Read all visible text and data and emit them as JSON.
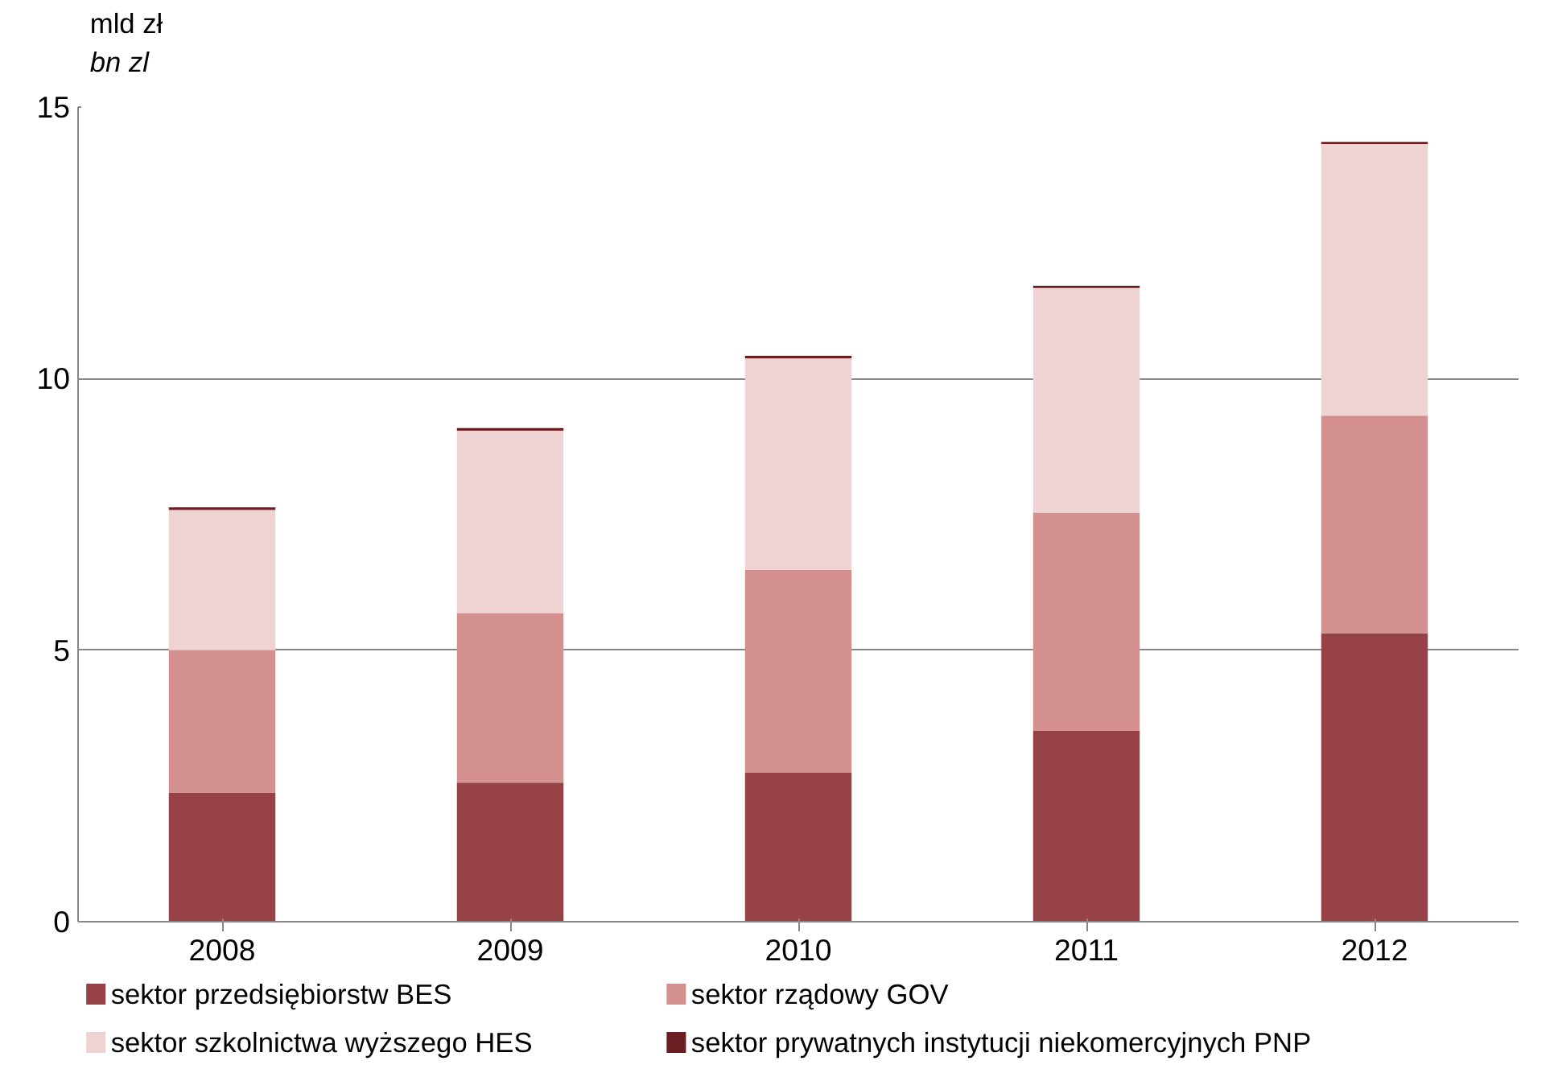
{
  "chart_data": {
    "type": "bar",
    "stacked": true,
    "ylabel": "mld zł\nbn zl",
    "categories": [
      "2008",
      "2009",
      "2010",
      "2011",
      "2012"
    ],
    "series": [
      {
        "name": "sektor przedsiębiorstw BES",
        "color": "#954145",
        "values": [
          2.38,
          2.56,
          2.75,
          3.52,
          5.31
        ]
      },
      {
        "name": "sektor rządowy GOV",
        "color": "#d4908e",
        "values": [
          2.62,
          3.12,
          3.73,
          4.01,
          4.01
        ]
      },
      {
        "name": "sektor szkolnictwa wyższego HES",
        "color": "#efd3d3",
        "values": [
          2.58,
          3.36,
          3.89,
          4.14,
          5.0
        ]
      },
      {
        "name": "sektor prywatnych instytucji niekomercyjnych PNP",
        "color": "#6b1e22",
        "values": [
          0.05,
          0.05,
          0.05,
          0.04,
          0.04
        ]
      }
    ],
    "ylim": [
      0,
      15
    ],
    "yticks": [
      0,
      5,
      10,
      15
    ],
    "grid": "y",
    "legend": "bottom"
  }
}
